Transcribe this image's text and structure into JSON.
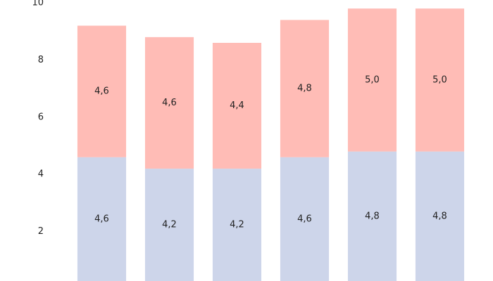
{
  "chart_data": {
    "type": "stacked_bar",
    "categories": [
      null,
      null,
      null,
      null,
      null,
      null
    ],
    "series": [
      {
        "color": "#cdd5ea",
        "values": [
          4.6,
          4.2,
          4.2,
          4.6,
          4.8,
          4.8
        ],
        "value_labels": [
          "4,6",
          "4,2",
          "4,2",
          "4,6",
          "4,8",
          "4,8"
        ]
      },
      {
        "color": "#ffbcb6",
        "values": [
          4.6,
          4.6,
          4.4,
          4.8,
          5.0,
          5.0
        ],
        "value_labels": [
          "4,6",
          "4,6",
          "4,4",
          "4,8",
          "5,0",
          "5,0"
        ]
      }
    ],
    "ylim": [
      0,
      10
    ],
    "yticks": [
      2,
      4,
      6,
      8,
      10
    ],
    "grid": false
  }
}
